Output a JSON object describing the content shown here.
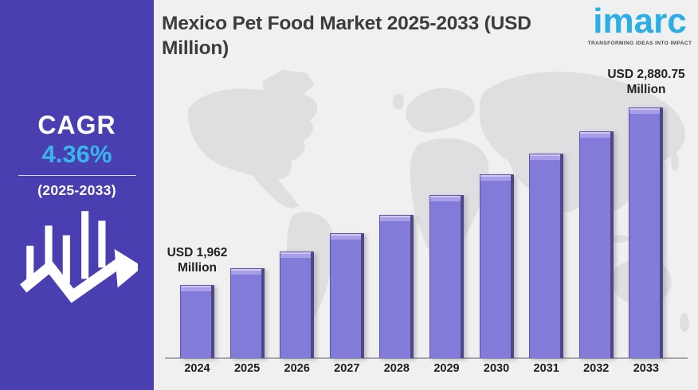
{
  "sidebar": {
    "cagr_label": "CAGR",
    "cagr_value": "4.36%",
    "period": "(2025-2033)",
    "bg_color": "#4a3fb0",
    "accent_color": "#38b5ea"
  },
  "header": {
    "title": "Mexico Pet Food Market 2025-2033 (USD Million)"
  },
  "logo": {
    "name": "imarc",
    "tagline": "TRANSFORMING IDEAS INTO IMPACT",
    "color": "#2aaee6"
  },
  "chart_data": {
    "type": "bar",
    "title": "Mexico Pet Food Market 2025-2033 (USD Million)",
    "unit": "USD Million",
    "categories": [
      "2024",
      "2025",
      "2026",
      "2027",
      "2028",
      "2029",
      "2030",
      "2031",
      "2032",
      "2033"
    ],
    "values": [
      1962,
      2047.5,
      2136.7,
      2229.9,
      2327.1,
      2428.5,
      2534.4,
      2644.9,
      2760.2,
      2880.75
    ],
    "values_estimated_from_cagr": true,
    "xlabel": "",
    "ylabel": "",
    "value_axis_visible": false,
    "gridlines": false,
    "legend": "none",
    "bar_color": "#837bda",
    "background_watermark": "world-map",
    "annotations": [
      {
        "category": "2024",
        "label": "USD 1,962 Million",
        "line1": "USD 1,962",
        "line2": "Million"
      },
      {
        "category": "2033",
        "label": "USD 2,880.75 Million",
        "line1": "USD 2,880.75",
        "line2": "Million"
      }
    ]
  }
}
